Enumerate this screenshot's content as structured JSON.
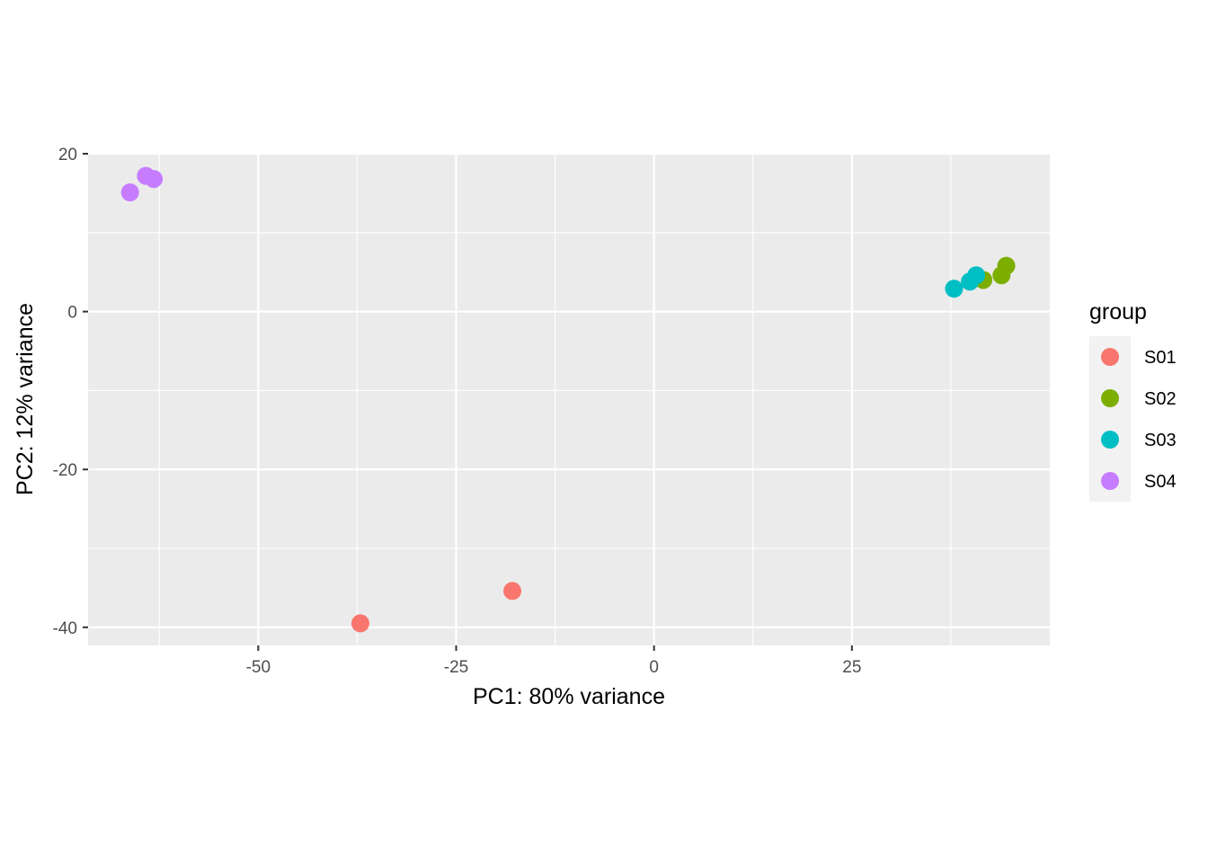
{
  "chart_data": {
    "type": "scatter",
    "title": "",
    "xlabel": "PC1: 80% variance",
    "ylabel": "PC2: 12% variance",
    "xlim": [
      -71.5,
      50
    ],
    "ylim": [
      -42.3,
      20
    ],
    "x_ticks": [
      -50,
      -25,
      0,
      25
    ],
    "x_tick_labels": [
      "-50",
      "-25",
      "0",
      "25"
    ],
    "y_ticks": [
      -40,
      -20,
      0,
      20
    ],
    "y_tick_labels": [
      "-40",
      "-20",
      "0",
      "20"
    ],
    "grid": true,
    "legend": {
      "title": "group",
      "placement": "right"
    },
    "series": [
      {
        "name": "S01",
        "color": "#F8766D",
        "points": [
          {
            "x": -37.1,
            "y": -39.5
          },
          {
            "x": -17.9,
            "y": -35.4
          }
        ]
      },
      {
        "name": "S02",
        "color": "#7CAE00",
        "points": [
          {
            "x": 41.6,
            "y": 4.0
          },
          {
            "x": 43.9,
            "y": 4.6
          },
          {
            "x": 44.5,
            "y": 5.8
          }
        ]
      },
      {
        "name": "S03",
        "color": "#00BFC4",
        "points": [
          {
            "x": 37.9,
            "y": 2.9
          },
          {
            "x": 39.9,
            "y": 3.8
          },
          {
            "x": 40.7,
            "y": 4.6
          }
        ]
      },
      {
        "name": "S04",
        "color": "#C77CFF",
        "points": [
          {
            "x": -66.2,
            "y": 15.1
          },
          {
            "x": -64.2,
            "y": 17.2
          },
          {
            "x": -63.2,
            "y": 16.8
          }
        ]
      }
    ]
  }
}
